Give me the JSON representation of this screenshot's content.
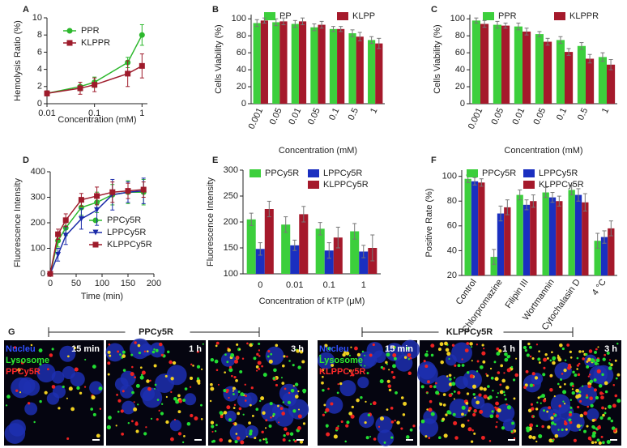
{
  "chart_data": [
    {
      "type": "line",
      "panel": "A",
      "xlabel": "Concentration (mM)",
      "ylabel": "Hemolysis Ratio (%)",
      "xlog": true,
      "x": [
        0.01,
        0.05,
        0.1,
        0.5,
        1
      ],
      "xlim": [
        0.01,
        1.3
      ],
      "xticks": [
        0.01,
        0.1,
        1
      ],
      "ylim": [
        0,
        10
      ],
      "yticks": [
        0,
        2,
        4,
        6,
        8,
        10
      ],
      "series": [
        {
          "name": "PPR",
          "color": "#2db82d",
          "marker": "circle",
          "values": [
            1.2,
            2.0,
            2.5,
            4.8,
            8.0
          ],
          "errors": [
            0.3,
            0.5,
            0.6,
            0.6,
            1.2
          ]
        },
        {
          "name": "KLPPR",
          "color": "#9e1b2b",
          "marker": "square",
          "values": [
            1.2,
            1.8,
            2.2,
            3.5,
            4.4
          ],
          "errors": [
            0.3,
            0.7,
            0.8,
            1.5,
            1.4
          ]
        }
      ]
    },
    {
      "type": "bar",
      "panel": "B",
      "xlabel": "Concentration (mM)",
      "ylabel": "Cells Viability (%)",
      "categories": [
        "0.001",
        "0.05",
        "0.01",
        "0.05",
        "0.1",
        "0.5",
        "1"
      ],
      "ylim": [
        0,
        105
      ],
      "yticks": [
        0,
        20,
        40,
        60,
        80,
        100
      ],
      "series": [
        {
          "name": "PP",
          "color": "#3ccf3c",
          "values": [
            95,
            96,
            94,
            90,
            88,
            83,
            75
          ],
          "errors": [
            4,
            4,
            4,
            4,
            3,
            4,
            4
          ]
        },
        {
          "name": "KLPP",
          "color": "#a5192b",
          "values": [
            98,
            97,
            97,
            93,
            88,
            79,
            71
          ],
          "errors": [
            3,
            4,
            4,
            4,
            3,
            5,
            6
          ]
        }
      ]
    },
    {
      "type": "bar",
      "panel": "C",
      "xlabel": "Concentration (mM)",
      "ylabel": "Cells Viability (%)",
      "categories": [
        "0.001",
        "0.05",
        "0.01",
        "0.05",
        "0.1",
        "0.5",
        "1"
      ],
      "ylim": [
        0,
        105
      ],
      "yticks": [
        0,
        20,
        40,
        60,
        80,
        100
      ],
      "series": [
        {
          "name": "PPR",
          "color": "#3ccf3c",
          "values": [
            98,
            93,
            91,
            82,
            75,
            68,
            55
          ],
          "errors": [
            3,
            4,
            4,
            3,
            4,
            4,
            5
          ]
        },
        {
          "name": "KLPPR",
          "color": "#a5192b",
          "values": [
            94,
            92,
            85,
            73,
            61,
            53,
            46
          ],
          "errors": [
            4,
            3,
            4,
            4,
            4,
            5,
            6
          ]
        }
      ]
    },
    {
      "type": "line",
      "panel": "D",
      "xlabel": "Time (min)",
      "ylabel": "Fluorescence Intensity",
      "xlog": false,
      "x": [
        0,
        15,
        30,
        60,
        90,
        120,
        150,
        180
      ],
      "xlim": [
        0,
        200
      ],
      "xticks": [
        0,
        50,
        100,
        150,
        200
      ],
      "ylim": [
        0,
        400
      ],
      "yticks": [
        0,
        100,
        200,
        300,
        400
      ],
      "series": [
        {
          "name": "PPCy5R",
          "color": "#2db82d",
          "marker": "circle",
          "values": [
            0,
            130,
            180,
            260,
            280,
            310,
            320,
            320
          ],
          "errors": [
            0,
            25,
            30,
            30,
            40,
            40,
            45,
            50
          ]
        },
        {
          "name": "LPPCy5R",
          "color": "#1a2aa8",
          "marker": "triangle",
          "values": [
            0,
            75,
            150,
            215,
            250,
            310,
            320,
            325
          ],
          "errors": [
            0,
            25,
            35,
            40,
            60,
            60,
            40,
            50
          ]
        },
        {
          "name": "KLPPCy5R",
          "color": "#9e1b2b",
          "marker": "square",
          "values": [
            0,
            155,
            210,
            290,
            305,
            320,
            325,
            330
          ],
          "errors": [
            0,
            20,
            25,
            25,
            35,
            40,
            30,
            30
          ]
        }
      ]
    },
    {
      "type": "bar",
      "panel": "E",
      "xlabel": "Concentration of KTP (μM)",
      "ylabel": "Fluorescence Intensity",
      "categories": [
        "0",
        "0.01",
        "0.1",
        "1"
      ],
      "ylim": [
        100,
        300
      ],
      "yticks": [
        100,
        150,
        200,
        250,
        300
      ],
      "series": [
        {
          "name": "PPCy5R",
          "color": "#3ccf3c",
          "values": [
            205,
            195,
            187,
            182
          ],
          "errors": [
            12,
            15,
            12,
            15
          ]
        },
        {
          "name": "LPPCy5R",
          "color": "#1a2fc0",
          "values": [
            148,
            155,
            145,
            143
          ],
          "errors": [
            12,
            10,
            15,
            12
          ]
        },
        {
          "name": "KLPPCy5R",
          "color": "#a5192b",
          "values": [
            225,
            215,
            170,
            150
          ],
          "errors": [
            15,
            15,
            20,
            25
          ]
        }
      ]
    },
    {
      "type": "bar",
      "panel": "F",
      "ylabel": "Positive Rate (%)",
      "categories": [
        "Control",
        "Chlorpromazine",
        "Filipin III",
        "Wortmannin",
        "Cytochalasin D",
        "4 °C"
      ],
      "ylim": [
        20,
        105
      ],
      "yticks": [
        20,
        40,
        60,
        80,
        100
      ],
      "series": [
        {
          "name": "PPCy5R",
          "color": "#3ccf3c",
          "values": [
            98,
            35,
            85,
            87,
            89,
            48
          ],
          "errors": [
            3,
            6,
            4,
            4,
            4,
            6
          ]
        },
        {
          "name": "LPPCy5R",
          "color": "#1a2fc0",
          "values": [
            96,
            70,
            77,
            83,
            85,
            51
          ],
          "errors": [
            3,
            6,
            4,
            4,
            5,
            5
          ]
        },
        {
          "name": "KLPPCy5R",
          "color": "#a5192b",
          "values": [
            95,
            75,
            80,
            80,
            79,
            58
          ],
          "errors": [
            3,
            6,
            5,
            4,
            7,
            6
          ]
        }
      ]
    }
  ],
  "panel_g": {
    "panel": "G",
    "groups": [
      {
        "label": "PPCy5R",
        "legend": [
          "Nucleu",
          "Lysosome",
          "PPCy5R"
        ],
        "times": [
          "15 min",
          "1 h",
          "3 h"
        ]
      },
      {
        "label": "KLPPCy5R",
        "legend": [
          "Nucleu",
          "Lysosome",
          "KLPPCy5R"
        ],
        "times": [
          "15 min",
          "1 h",
          "3 h"
        ]
      }
    ]
  }
}
